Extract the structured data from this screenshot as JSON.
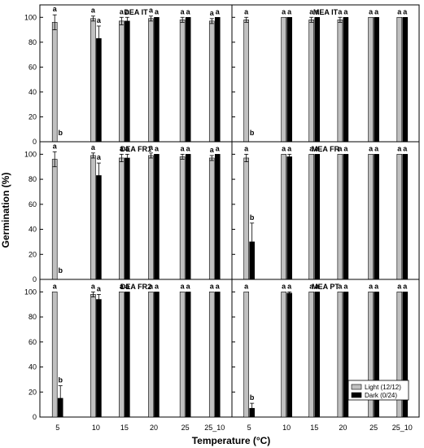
{
  "chart_data": {
    "type": "bar",
    "xlabel": "Temperature (°C)",
    "ylabel": "Germination (%)",
    "ylim": [
      0,
      110
    ],
    "yticks": [
      0,
      20,
      40,
      60,
      80,
      100
    ],
    "categories": [
      "5",
      "10",
      "15",
      "20",
      "25",
      "25_10"
    ],
    "legend": {
      "placement": "bottom-right of MEA PT panel",
      "entries": [
        {
          "label": "Light (12/12)",
          "color": "#c0c0c0"
        },
        {
          "label": "Dark (0/24)",
          "color": "#000000"
        }
      ]
    },
    "panels": [
      {
        "title": "DEA IT",
        "series": [
          {
            "name": "Light (12/12)",
            "values": [
              96,
              99,
              97,
              99,
              98,
              97
            ],
            "errors": [
              6,
              2,
              3,
              2,
              2,
              2
            ],
            "labels": [
              "a",
              "a",
              "a",
              "a",
              "a",
              "a"
            ]
          },
          {
            "name": "Dark (0/24)",
            "values": [
              0,
              83,
              97,
              100,
              100,
              100
            ],
            "errors": [
              0,
              10,
              3,
              0,
              0,
              0
            ],
            "labels": [
              "b",
              "a",
              "a",
              "a",
              "a",
              "a"
            ]
          }
        ]
      },
      {
        "title": "MEA IT",
        "series": [
          {
            "name": "Light (12/12)",
            "values": [
              98,
              100,
              98,
              98,
              100,
              100
            ],
            "errors": [
              2,
              0,
              2,
              2,
              0,
              0
            ],
            "labels": [
              "a",
              "a",
              "a",
              "a",
              "a",
              "a"
            ]
          },
          {
            "name": "Dark (0/24)",
            "values": [
              0,
              100,
              100,
              100,
              100,
              100
            ],
            "errors": [
              0,
              0,
              0,
              0,
              0,
              0
            ],
            "labels": [
              "b",
              "a",
              "a",
              "a",
              "a",
              "a"
            ]
          }
        ]
      },
      {
        "title": "DEA FR1",
        "series": [
          {
            "name": "Light (12/12)",
            "values": [
              96,
              99,
              97,
              99,
              98,
              97
            ],
            "errors": [
              6,
              2,
              3,
              2,
              2,
              2
            ],
            "labels": [
              "a",
              "a",
              "a",
              "a",
              "a",
              "a"
            ]
          },
          {
            "name": "Dark (0/24)",
            "values": [
              0,
              83,
              97,
              100,
              100,
              100
            ],
            "errors": [
              0,
              10,
              3,
              0,
              0,
              0
            ],
            "labels": [
              "b",
              "a",
              "a",
              "a",
              "a",
              "a"
            ]
          }
        ]
      },
      {
        "title": "MEA FR",
        "series": [
          {
            "name": "Light (12/12)",
            "values": [
              97,
              100,
              100,
              100,
              100,
              100
            ],
            "errors": [
              3,
              0,
              0,
              0,
              0,
              0
            ],
            "labels": [
              "a",
              "a",
              "a",
              "a",
              "a",
              "a"
            ]
          },
          {
            "name": "Dark (0/24)",
            "values": [
              30,
              98,
              100,
              100,
              100,
              100
            ],
            "errors": [
              15,
              2,
              0,
              0,
              0,
              0
            ],
            "labels": [
              "b",
              "a",
              "a",
              "a",
              "a",
              "a"
            ]
          }
        ]
      },
      {
        "title": "DEA FR2",
        "series": [
          {
            "name": "Light (12/12)",
            "values": [
              100,
              98,
              100,
              100,
              100,
              100
            ],
            "errors": [
              0,
              2,
              0,
              0,
              0,
              0
            ],
            "labels": [
              "a",
              "a",
              "a",
              "a",
              "a",
              "a"
            ]
          },
          {
            "name": "Dark (0/24)",
            "values": [
              15,
              94,
              100,
              100,
              100,
              100
            ],
            "errors": [
              10,
              4,
              0,
              0,
              0,
              0
            ],
            "labels": [
              "b",
              "a",
              "a",
              "a",
              "a",
              "a"
            ]
          }
        ]
      },
      {
        "title": "MEA PT",
        "series": [
          {
            "name": "Light (12/12)",
            "values": [
              100,
              100,
              100,
              100,
              100,
              100
            ],
            "errors": [
              0,
              0,
              0,
              0,
              0,
              0
            ],
            "labels": [
              "a",
              "a",
              "a",
              "a",
              "a",
              "a"
            ]
          },
          {
            "name": "Dark (0/24)",
            "values": [
              7,
              99,
              100,
              100,
              100,
              100
            ],
            "errors": [
              4,
              1,
              0,
              0,
              0,
              0
            ],
            "labels": [
              "b",
              "a",
              "a",
              "a",
              "a",
              "a"
            ]
          }
        ]
      }
    ]
  }
}
